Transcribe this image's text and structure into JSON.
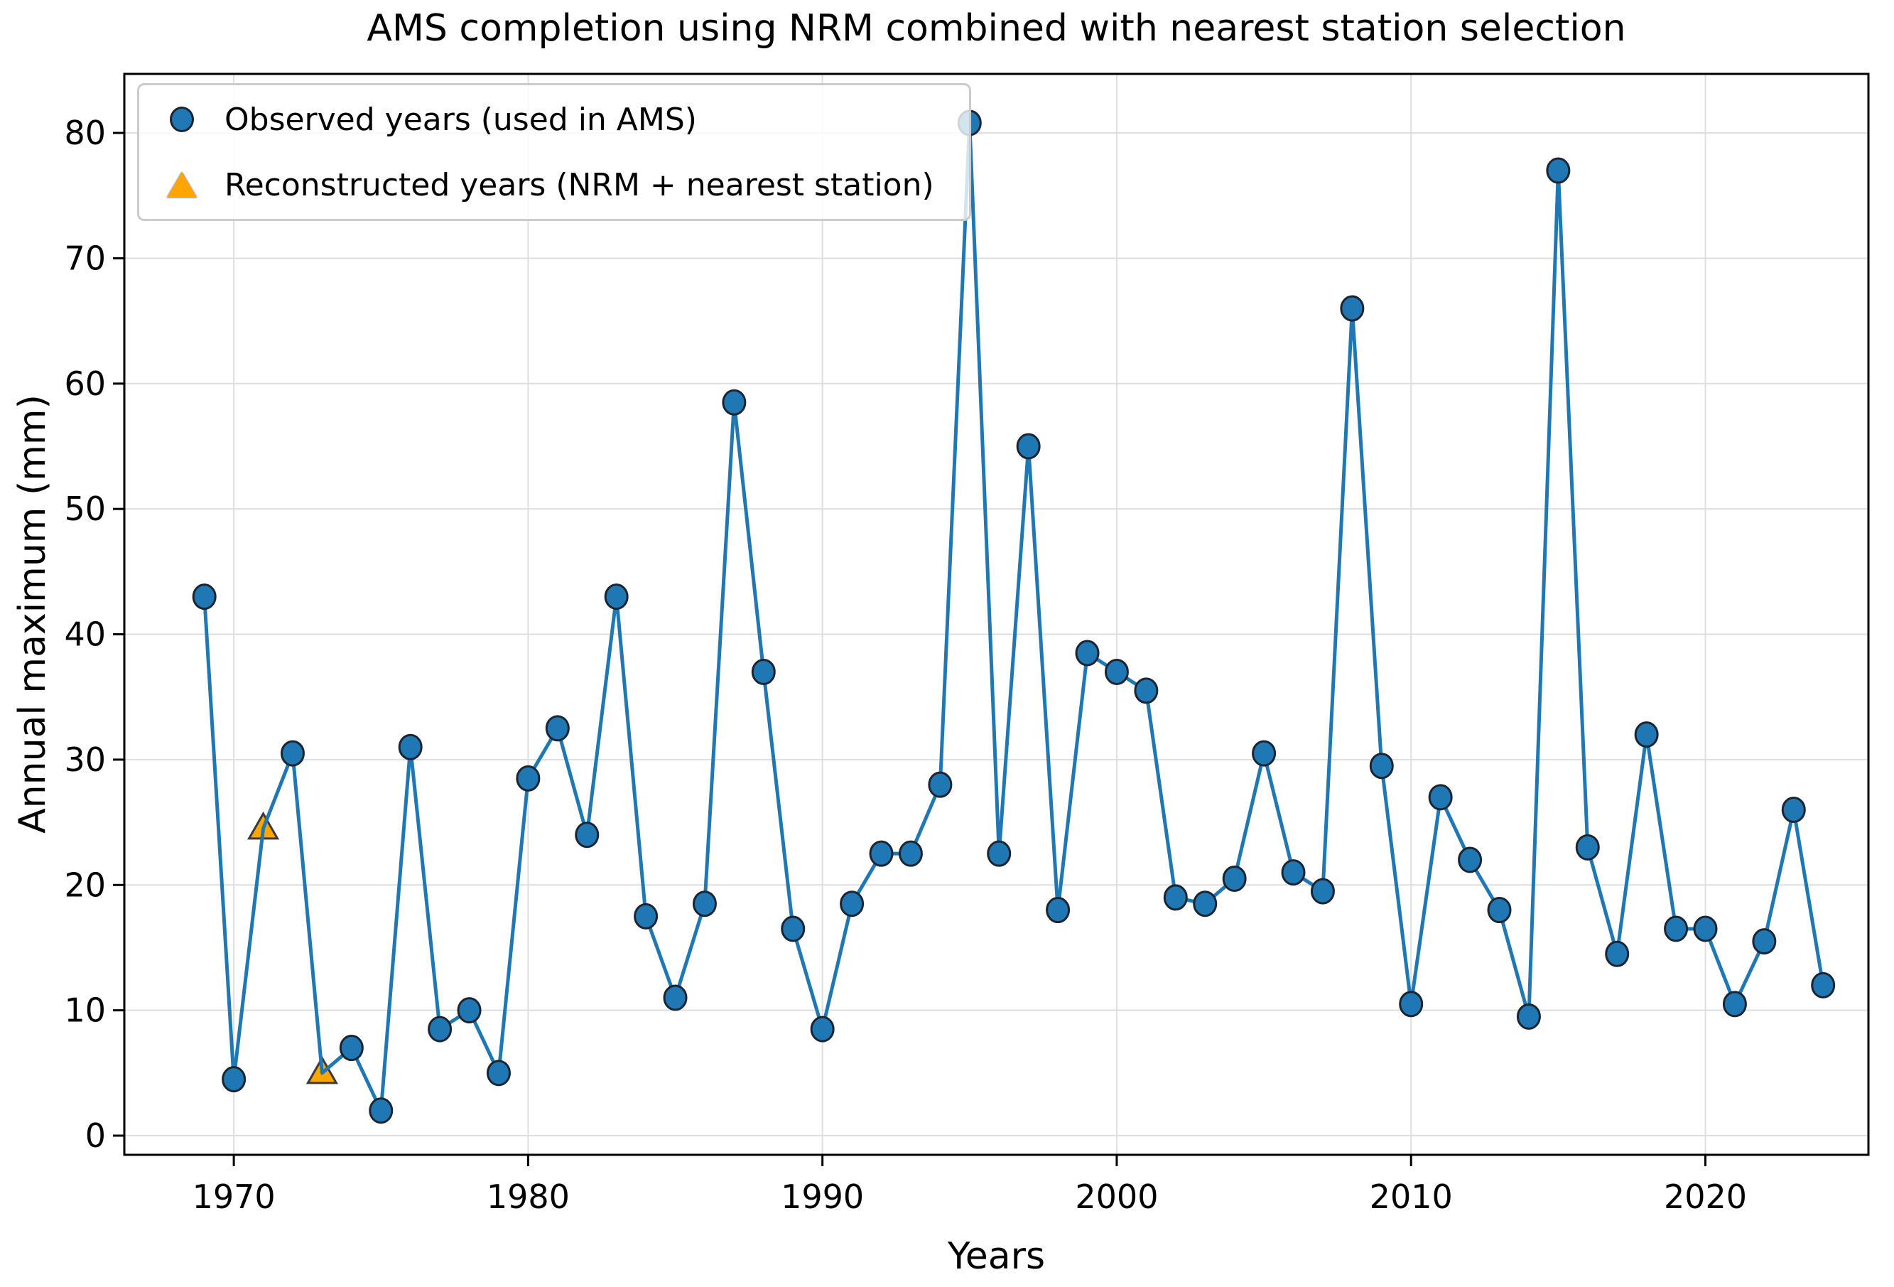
{
  "title": "AMS completion using NRM combined with nearest station selection",
  "axes": {
    "xlabel": "Years",
    "ylabel": "Annual maximum (mm)"
  },
  "legend": {
    "position": "upper-left",
    "items": [
      {
        "marker": "circle",
        "label": "Observed years (used in AMS)"
      },
      {
        "marker": "triangle",
        "label": "Reconstructed years (NRM + nearest station)"
      }
    ]
  },
  "colors": {
    "line": "#1f77b4",
    "circle_fill": "#1f77b4",
    "circle_edge": "#1c2430",
    "triangle_fill": "#ffa500",
    "triangle_edge": "#3a3a3a",
    "grid": "#dedede",
    "spine": "#000000",
    "tick": "#000000",
    "legend_border": "#cbcbcb"
  },
  "chart_data": {
    "type": "line",
    "title": "AMS completion using NRM combined with nearest station selection",
    "xlabel": "Years",
    "ylabel": "Annual maximum (mm)",
    "grid": true,
    "legend_position": "upper-left",
    "xlim": [
      1966.28,
      2025.54
    ],
    "ylim": [
      -1.53,
      84.71
    ],
    "x_ticks": [
      1970,
      1980,
      1990,
      2000,
      2010,
      2020
    ],
    "y_ticks": [
      0,
      10,
      20,
      30,
      40,
      50,
      60,
      70,
      80
    ],
    "x": [
      1969,
      1970,
      1971,
      1972,
      1973,
      1974,
      1975,
      1976,
      1977,
      1978,
      1979,
      1980,
      1981,
      1982,
      1983,
      1984,
      1985,
      1986,
      1987,
      1988,
      1989,
      1990,
      1991,
      1992,
      1993,
      1994,
      1995,
      1996,
      1997,
      1998,
      1999,
      2000,
      2001,
      2002,
      2003,
      2004,
      2005,
      2006,
      2007,
      2008,
      2009,
      2010,
      2011,
      2012,
      2013,
      2014,
      2015,
      2016,
      2017,
      2018,
      2019,
      2020,
      2021,
      2022,
      2023,
      2024
    ],
    "y": [
      43,
      4.5,
      24.5,
      30.5,
      5,
      7,
      2,
      31,
      8.5,
      10,
      5,
      28.5,
      32.5,
      24,
      43,
      17.5,
      11,
      18.5,
      58.5,
      37,
      16.5,
      8.5,
      18.5,
      22.5,
      22.5,
      28,
      80.8,
      22.5,
      55,
      18,
      38.5,
      37,
      35.5,
      19,
      18.5,
      20.5,
      30.5,
      21,
      19.5,
      66,
      29.5,
      10.5,
      27,
      22,
      18,
      9.5,
      77,
      23,
      14.5,
      32,
      16.5,
      16.5,
      10.5,
      15.5,
      26,
      12
    ],
    "reconstructed_years": [
      1971,
      1973
    ],
    "series": [
      {
        "name": "Observed years (used in AMS)",
        "marker": "circle",
        "color": "#1f77b4"
      },
      {
        "name": "Reconstructed years (NRM + nearest station)",
        "marker": "triangle",
        "color": "#ffa500"
      }
    ]
  }
}
